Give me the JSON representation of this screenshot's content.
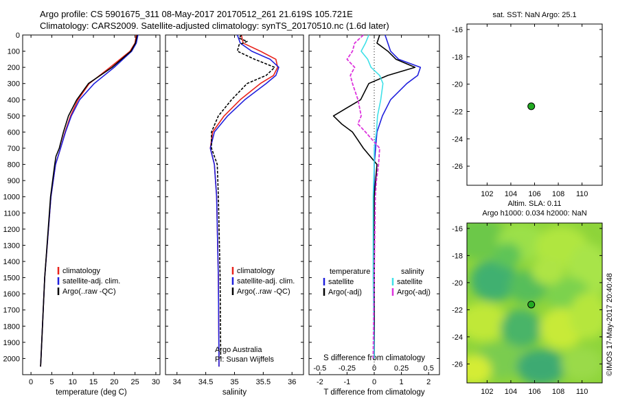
{
  "header": {
    "line1": "Argo profile: CS 5901675_311 08-May-2017 20170512_261 21.619S 105.721E",
    "line2": "Climatology: CARS2009. Satellite-adjusted climatology: synTS_20170510.nc (1.6d later)"
  },
  "credit": "©IMOS 17-May-2017 20:40:48",
  "colors": {
    "climatology": "#e8221b",
    "satellite": "#1f1fdd",
    "argo": "#000000",
    "satellite_s": "#3ee0e8",
    "argo_s": "#dd33dd",
    "dot": "#22aa22"
  },
  "chart_data": [
    {
      "type": "line",
      "name": "temperature",
      "xlabel": "temperature (deg C)",
      "ylabel": "",
      "xlim": [
        -2,
        31
      ],
      "ylim": [
        2100,
        0
      ],
      "xticks": [
        "0",
        "5",
        "10",
        "15",
        "20",
        "25",
        "30"
      ],
      "yticks": [
        "0",
        "100",
        "200",
        "300",
        "400",
        "500",
        "600",
        "700",
        "800",
        "900",
        "1000",
        "1100",
        "1200",
        "1300",
        "1400",
        "1500",
        "1600",
        "1700",
        "1800",
        "1900",
        "2000"
      ],
      "legend": [
        "climatology",
        "satellite-adj. clim.",
        "Argo(..raw -QC)"
      ],
      "series": [
        {
          "name": "climatology",
          "depth": [
            0,
            50,
            100,
            200,
            300,
            400,
            500,
            600,
            700,
            800,
            1000,
            1500,
            2000,
            2050
          ],
          "values": [
            25.3,
            25.0,
            23.8,
            19.0,
            14.0,
            11.3,
            9.5,
            8.2,
            7.1,
            5.9,
            4.8,
            3.3,
            2.4,
            2.3
          ]
        },
        {
          "name": "satellite-adj. clim.",
          "depth": [
            0,
            50,
            100,
            200,
            300,
            400,
            500,
            600,
            700,
            800,
            1000,
            1500,
            2000,
            2050
          ],
          "values": [
            25.7,
            25.3,
            24.2,
            20.0,
            15.2,
            11.7,
            9.7,
            8.3,
            7.1,
            5.9,
            4.8,
            3.3,
            2.4,
            2.3
          ]
        },
        {
          "name": "Argo(..raw -QC)",
          "depth": [
            0,
            50,
            100,
            200,
            300,
            400,
            500,
            600,
            700,
            750,
            800,
            1000,
            1500,
            2000,
            2050
          ],
          "values": [
            25.5,
            25.1,
            24.0,
            19.5,
            13.8,
            11.0,
            9.0,
            7.8,
            6.8,
            6.0,
            5.7,
            4.7,
            3.3,
            2.4,
            2.3
          ]
        }
      ]
    },
    {
      "type": "line",
      "name": "salinity",
      "xlabel": "salinity",
      "ylabel": "",
      "xlim": [
        33.8,
        36.2
      ],
      "ylim": [
        2100,
        0
      ],
      "xticks": [
        "34",
        "34.5",
        "35",
        "35.5",
        "36"
      ],
      "legend": [
        "climatology",
        "satellite-adj. clim.",
        "Argo(..raw -QC)"
      ],
      "annotations": [
        "Argo Australia",
        "PI: Susan Wijffels"
      ],
      "series": [
        {
          "name": "climatology",
          "depth": [
            0,
            50,
            100,
            150,
            200,
            250,
            300,
            400,
            500,
            600,
            700,
            800,
            1000,
            1500,
            2000,
            2050
          ],
          "values": [
            35.12,
            35.15,
            35.45,
            35.72,
            35.75,
            35.68,
            35.45,
            35.1,
            34.82,
            34.62,
            34.58,
            34.65,
            34.69,
            34.72,
            34.73,
            34.73
          ]
        },
        {
          "name": "satellite-adj. clim.",
          "depth": [
            0,
            50,
            100,
            150,
            200,
            250,
            300,
            400,
            500,
            600,
            700,
            800,
            1000,
            1500,
            2000,
            2050
          ],
          "values": [
            35.05,
            35.1,
            35.3,
            35.62,
            35.77,
            35.72,
            35.55,
            35.18,
            34.88,
            34.65,
            34.58,
            34.65,
            34.69,
            34.72,
            34.73,
            34.73
          ]
        },
        {
          "name": "Argo(..raw -QC)",
          "depth": [
            0,
            20,
            40,
            60,
            100,
            150,
            200,
            250,
            300,
            400,
            500,
            600,
            700,
            800,
            1000,
            1500,
            2000
          ],
          "values": [
            35.12,
            35.08,
            35.22,
            35.08,
            35.05,
            35.35,
            35.7,
            35.55,
            35.22,
            34.95,
            34.72,
            34.6,
            34.6,
            34.7,
            34.72,
            34.75,
            34.76
          ]
        }
      ]
    },
    {
      "type": "line",
      "name": "difference",
      "xlabel": "T difference from climatology",
      "toplabel": "S difference from climatology",
      "xlim": [
        -2.4,
        2.4
      ],
      "ylim": [
        2100,
        0
      ],
      "xticks": [
        "-2",
        "-1",
        "0",
        "1",
        "2"
      ],
      "topticks": [
        "-0.5",
        "-0.25",
        "0",
        "0.25",
        "0.5"
      ],
      "legend_t": {
        "title": "temperature",
        "items": [
          "satellite",
          "Argo(-adj)"
        ]
      },
      "legend_s": {
        "title": "salinity",
        "items": [
          "satellite",
          "Argo(-adj)"
        ]
      },
      "series": [
        {
          "name": "T satellite",
          "depth": [
            0,
            50,
            100,
            150,
            200,
            250,
            300,
            400,
            500,
            600,
            700,
            800,
            1000,
            1500,
            2000
          ],
          "values": [
            0.4,
            0.5,
            0.6,
            0.9,
            1.7,
            1.6,
            1.2,
            0.6,
            0.3,
            0.1,
            0.05,
            0.0,
            0.0,
            0.0,
            0.0
          ]
        },
        {
          "name": "T Argo(-adj)",
          "depth": [
            0,
            50,
            100,
            150,
            200,
            250,
            300,
            400,
            450,
            500,
            550,
            600,
            650,
            700,
            800,
            1000,
            1500,
            2000
          ],
          "values": [
            0.2,
            0.1,
            0.5,
            0.8,
            1.5,
            0.5,
            -0.2,
            -0.5,
            -1.0,
            -1.5,
            -1.2,
            -0.8,
            -0.6,
            -0.4,
            0.1,
            0.0,
            0.0,
            0.0
          ]
        },
        {
          "name": "S satellite",
          "depth": [
            0,
            50,
            100,
            150,
            200,
            250,
            300,
            400,
            500,
            600,
            700,
            800,
            1000,
            1500,
            2000
          ],
          "values": [
            -0.05,
            -0.08,
            -0.12,
            -0.06,
            -0.03,
            0.05,
            0.08,
            0.06,
            0.03,
            0.02,
            0.0,
            0.0,
            -0.01,
            -0.01,
            0.0
          ]
        },
        {
          "name": "S Argo(-adj)",
          "depth": [
            0,
            50,
            100,
            150,
            200,
            250,
            300,
            400,
            500,
            550,
            600,
            700,
            800,
            900,
            1000,
            1500,
            2000
          ],
          "values": [
            -0.1,
            -0.18,
            -0.2,
            -0.25,
            -0.18,
            -0.22,
            -0.2,
            -0.15,
            -0.12,
            -0.15,
            -0.08,
            0.05,
            0.04,
            0.02,
            0.01,
            0.0,
            -0.01
          ]
        }
      ]
    },
    {
      "type": "scatter",
      "name": "sst-map",
      "title": "sat. SST: NaN Argo: 25.1",
      "xlim": [
        100.3,
        111.7
      ],
      "ylim": [
        -27.4,
        -15.6
      ],
      "xticks": [
        "102",
        "104",
        "106",
        "108",
        "110"
      ],
      "yticks": [
        "-16",
        "-18",
        "-20",
        "-22",
        "-24",
        "-26"
      ],
      "point": {
        "lon": 105.721,
        "lat": -21.619
      }
    },
    {
      "type": "heatmap",
      "name": "sla-map",
      "title_line1": "Altim. SLA: 0.11",
      "title_line2": "Argo h1000: 0.034 h2000: NaN",
      "xlim": [
        100.3,
        111.7
      ],
      "ylim": [
        -27.4,
        -15.6
      ],
      "xticks": [
        "102",
        "104",
        "106",
        "108",
        "110"
      ],
      "yticks": [
        "-16",
        "-18",
        "-20",
        "-22",
        "-24",
        "-26"
      ],
      "point": {
        "lon": 105.721,
        "lat": -21.619
      }
    }
  ]
}
